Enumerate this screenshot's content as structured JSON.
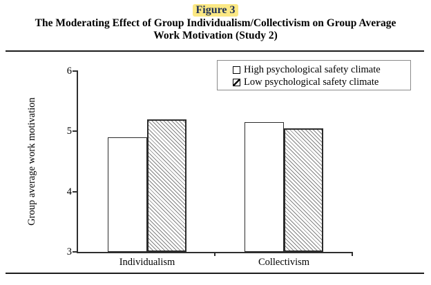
{
  "figure": {
    "label": "Figure 3",
    "label_color": "#1f3057",
    "label_highlight": "#fbe884",
    "title_line1": "The Moderating Effect of Group Individualism/Collectivism on Group Average",
    "title_line2": "Work Motivation (Study 2)"
  },
  "chart_data": {
    "type": "bar",
    "title": "Figure 3. The Moderating Effect of Group Individualism/Collectivism on Group Average Work Motivation (Study 2)",
    "categories": [
      "Individualism",
      "Collectivism"
    ],
    "series": [
      {
        "name": "High psychological safety climate",
        "style": "plain",
        "values": [
          4.9,
          5.15
        ]
      },
      {
        "name": "Low psychological safety climate",
        "style": "hatched",
        "values": [
          5.2,
          5.05
        ]
      }
    ],
    "xlabel": "",
    "ylabel": "Group average work motivation",
    "ylim": [
      3,
      6
    ],
    "yticks": [
      3,
      4,
      5,
      6
    ],
    "grid": false,
    "legend_position": "top-right",
    "colors": {
      "bar_fill": "#ffffff",
      "bar_border": "#2b2b2b",
      "hatch_line": "#828282",
      "axis": "#2e2e2e"
    }
  }
}
